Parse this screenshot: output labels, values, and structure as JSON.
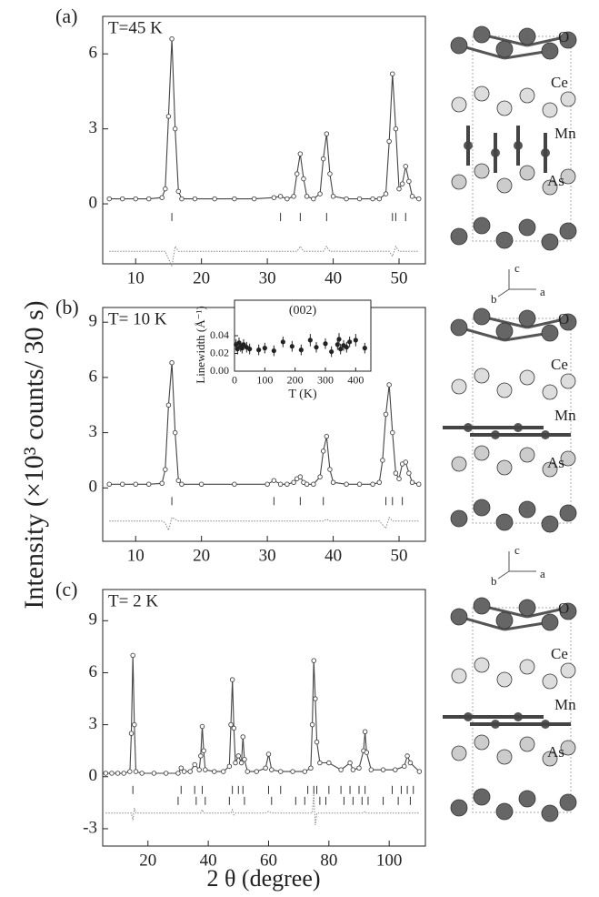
{
  "figure": {
    "ylabel": "Intensity (×10³ counts/ 30 s)",
    "xlabel": "2 θ (degree)"
  },
  "chart_data": [
    {
      "type": "line",
      "panel": "(a)",
      "annotation": "T=45 K",
      "x": [
        6,
        8,
        10,
        12,
        14,
        14.5,
        15,
        15.5,
        16,
        16.5,
        17,
        19,
        22,
        25,
        28,
        31,
        32,
        33,
        34,
        34.5,
        35,
        35.5,
        36,
        37,
        38,
        38.5,
        39,
        39.5,
        40,
        42,
        44,
        46,
        47,
        48,
        48.5,
        49,
        49.5,
        50,
        50.5,
        51,
        51.5,
        52,
        53
      ],
      "series": [
        {
          "color": "#444444",
          "style": "points-line",
          "values": [
            0.2,
            0.2,
            0.2,
            0.2,
            0.25,
            0.6,
            3.5,
            6.6,
            3.0,
            0.5,
            0.2,
            0.2,
            0.2,
            0.2,
            0.2,
            0.25,
            0.3,
            0.2,
            0.3,
            1.2,
            2.0,
            1.0,
            0.3,
            0.2,
            0.4,
            1.8,
            2.8,
            1.2,
            0.3,
            0.2,
            0.2,
            0.2,
            0.2,
            0.4,
            2.5,
            5.2,
            3.0,
            0.6,
            0.8,
            1.5,
            0.9,
            0.3,
            0.2
          ]
        },
        {
          "color": "#888888",
          "style": "dotted",
          "values": [
            -1.9,
            -1.9,
            -1.9,
            -1.9,
            -1.9,
            -1.9,
            -2.2,
            -2.5,
            -1.7,
            -1.9,
            -1.9,
            -1.9,
            -1.9,
            -1.9,
            -1.9,
            -1.9,
            -1.9,
            -1.9,
            -1.9,
            -1.9,
            -1.7,
            -1.9,
            -1.9,
            -1.9,
            -1.9,
            -1.9,
            -1.7,
            -1.9,
            -1.9,
            -1.9,
            -1.9,
            -1.9,
            -1.9,
            -1.9,
            -1.9,
            -2.1,
            -1.7,
            -1.9,
            -1.9,
            -1.9,
            -1.9,
            -1.9,
            -1.9
          ]
        }
      ],
      "bragg_ticks": [
        [
          15.5,
          32,
          35,
          39,
          49,
          49.5,
          51
        ]
      ],
      "xlim": [
        5,
        54
      ],
      "ylim": [
        -2.4,
        7.5
      ],
      "xticks": [
        10,
        20,
        30,
        40,
        50
      ],
      "yticks": [
        0,
        3,
        6
      ]
    },
    {
      "type": "line",
      "panel": "(b)",
      "annotation": "T= 10 K",
      "x": [
        6,
        8,
        10,
        12,
        14,
        14.5,
        15,
        15.5,
        16,
        16.5,
        17,
        20,
        25,
        30,
        31,
        32,
        33,
        34,
        34.5,
        35,
        35.5,
        36,
        37,
        38,
        38.5,
        39,
        39.5,
        40,
        42,
        44,
        46,
        47,
        47.5,
        48,
        48.5,
        49,
        49.5,
        50,
        50.5,
        51,
        51.5,
        52,
        53
      ],
      "series": [
        {
          "color": "#444444",
          "style": "points-line",
          "values": [
            0.2,
            0.2,
            0.2,
            0.2,
            0.25,
            1.0,
            4.5,
            6.8,
            3.0,
            0.4,
            0.2,
            0.2,
            0.2,
            0.2,
            0.4,
            0.2,
            0.2,
            0.3,
            0.5,
            0.6,
            0.3,
            0.2,
            0.2,
            0.6,
            2.0,
            2.8,
            1.0,
            0.3,
            0.2,
            0.2,
            0.2,
            0.3,
            1.5,
            4.0,
            5.6,
            3.0,
            0.8,
            0.5,
            1.3,
            1.4,
            0.8,
            0.3,
            0.2
          ]
        },
        {
          "color": "#888888",
          "style": "dotted",
          "values": [
            -1.8,
            -1.8,
            -1.8,
            -1.8,
            -1.8,
            -1.9,
            -2.3,
            -1.6,
            -1.7,
            -1.8,
            -1.8,
            -1.8,
            -1.8,
            -1.8,
            -1.8,
            -1.8,
            -1.8,
            -1.8,
            -1.8,
            -1.8,
            -1.8,
            -1.8,
            -1.8,
            -1.8,
            -1.8,
            -1.7,
            -1.8,
            -1.8,
            -1.8,
            -1.8,
            -1.8,
            -1.8,
            -2.0,
            -2.2,
            -1.6,
            -1.8,
            -1.8,
            -1.8,
            -1.8,
            -1.8,
            -1.8,
            -1.8,
            -1.8
          ]
        }
      ],
      "bragg_ticks": [
        [
          15.5,
          31,
          35,
          38.5,
          48,
          49,
          50.5
        ]
      ],
      "xlim": [
        5,
        54
      ],
      "ylim": [
        -2.9,
        9.8
      ],
      "xticks": [
        10,
        20,
        30,
        40,
        50
      ],
      "yticks": [
        0,
        3,
        6,
        9
      ]
    },
    {
      "type": "line",
      "panel": "(c)",
      "annotation": "T= 2 K",
      "x": [
        6,
        8,
        10,
        12,
        14,
        14.5,
        15,
        15.5,
        16,
        18,
        22,
        26,
        30,
        31,
        32,
        34,
        35.5,
        37,
        37.5,
        38,
        38.5,
        39,
        42,
        45,
        47,
        47.5,
        48,
        48.5,
        49,
        50,
        51,
        51.5,
        52,
        53,
        56,
        59,
        60,
        61,
        64,
        68,
        72,
        74,
        74.5,
        75,
        75.5,
        76,
        77,
        80,
        84,
        87,
        88,
        90,
        91.5,
        92,
        92.5,
        94,
        98,
        102,
        105,
        106,
        107,
        110
      ],
      "series": [
        {
          "color": "#444444",
          "style": "points-line",
          "values": [
            0.2,
            0.2,
            0.2,
            0.2,
            0.3,
            2.5,
            7.0,
            3.0,
            0.3,
            0.2,
            0.2,
            0.2,
            0.2,
            0.5,
            0.3,
            0.3,
            0.7,
            0.4,
            1.2,
            2.9,
            1.5,
            0.4,
            0.3,
            0.3,
            0.6,
            3.0,
            5.6,
            2.8,
            0.8,
            1.2,
            0.8,
            2.3,
            1.0,
            0.3,
            0.3,
            0.5,
            1.3,
            0.4,
            0.3,
            0.3,
            0.3,
            0.5,
            3.0,
            6.7,
            4.5,
            2.0,
            0.8,
            0.8,
            0.4,
            0.8,
            0.4,
            0.5,
            1.5,
            2.6,
            1.4,
            0.4,
            0.4,
            0.4,
            0.6,
            1.2,
            0.8,
            0.3
          ]
        },
        {
          "color": "#888888",
          "style": "dotted",
          "values": [
            -2.1,
            -2.1,
            -2.1,
            -2.1,
            -2.1,
            -2.1,
            -2.5,
            -1.8,
            -2.1,
            -2.1,
            -2.1,
            -2.1,
            -2.1,
            -2.1,
            -2.1,
            -2.1,
            -2.1,
            -2.1,
            -2.1,
            -1.9,
            -2.1,
            -2.1,
            -2.1,
            -2.1,
            -2.1,
            -2.1,
            -1.9,
            -2.2,
            -2.1,
            -2.1,
            -2.1,
            -2.1,
            -2.1,
            -2.1,
            -2.1,
            -2.1,
            -2.0,
            -2.1,
            -2.1,
            -2.1,
            -2.1,
            -2.1,
            -2.1,
            -1.0,
            -2.8,
            -2.1,
            -2.1,
            -2.1,
            -2.1,
            -2.1,
            -2.1,
            -2.1,
            -2.1,
            -2.0,
            -2.1,
            -2.1,
            -2.1,
            -2.1,
            -2.1,
            -2.1,
            -2.1,
            -2.1
          ]
        }
      ],
      "bragg_ticks": [
        [
          15,
          31,
          35.5,
          38,
          48,
          50,
          51.5,
          60,
          64,
          73,
          75,
          76,
          80,
          84,
          87,
          90,
          92,
          101,
          104,
          106,
          108
        ],
        [
          30,
          36,
          39,
          47,
          52,
          61,
          69,
          72,
          77,
          79,
          85,
          88,
          91,
          93,
          98,
          103,
          107
        ]
      ],
      "xlim": [
        5,
        112
      ],
      "ylim": [
        -4,
        10.8
      ],
      "xticks": [
        20,
        40,
        60,
        80,
        100
      ],
      "yticks": [
        -3,
        0,
        3,
        6,
        9
      ]
    },
    {
      "type": "scatter",
      "title": "(002)",
      "xlabel": "T (K)",
      "ylabel": "Linewidth (Å⁻¹)",
      "x": [
        5,
        10,
        15,
        20,
        25,
        30,
        40,
        50,
        80,
        100,
        130,
        160,
        190,
        220,
        250,
        270,
        300,
        320,
        340,
        345,
        350,
        360,
        370,
        380,
        400,
        430
      ],
      "values": [
        0.03,
        0.025,
        0.032,
        0.028,
        0.026,
        0.03,
        0.027,
        0.025,
        0.024,
        0.026,
        0.023,
        0.033,
        0.028,
        0.024,
        0.035,
        0.027,
        0.031,
        0.022,
        0.03,
        0.036,
        0.025,
        0.029,
        0.027,
        0.033,
        0.035,
        0.026
      ],
      "errors": [
        0.006,
        0.006,
        0.006,
        0.006,
        0.006,
        0.006,
        0.006,
        0.006,
        0.006,
        0.006,
        0.006,
        0.006,
        0.006,
        0.006,
        0.007,
        0.006,
        0.006,
        0.006,
        0.006,
        0.007,
        0.006,
        0.006,
        0.006,
        0.006,
        0.007,
        0.006
      ],
      "color": "#222222",
      "xlim": [
        0,
        450
      ],
      "ylim": [
        0,
        0.08
      ],
      "xticks": [
        0,
        100,
        200,
        300,
        400
      ],
      "yticks": [
        {
          "value": 0,
          "label": "0.00"
        },
        0.02,
        0.04
      ]
    }
  ],
  "structures": [
    {
      "labels": [
        "O",
        "Ce",
        "Mn",
        "As"
      ],
      "axes": [
        "c",
        "b",
        "a"
      ]
    },
    {
      "labels": [
        "O",
        "Ce",
        "Mn",
        "As"
      ],
      "axes": [
        "c",
        "b",
        "a"
      ]
    },
    {
      "labels": [
        "O",
        "Ce",
        "Mn",
        "As"
      ]
    }
  ]
}
